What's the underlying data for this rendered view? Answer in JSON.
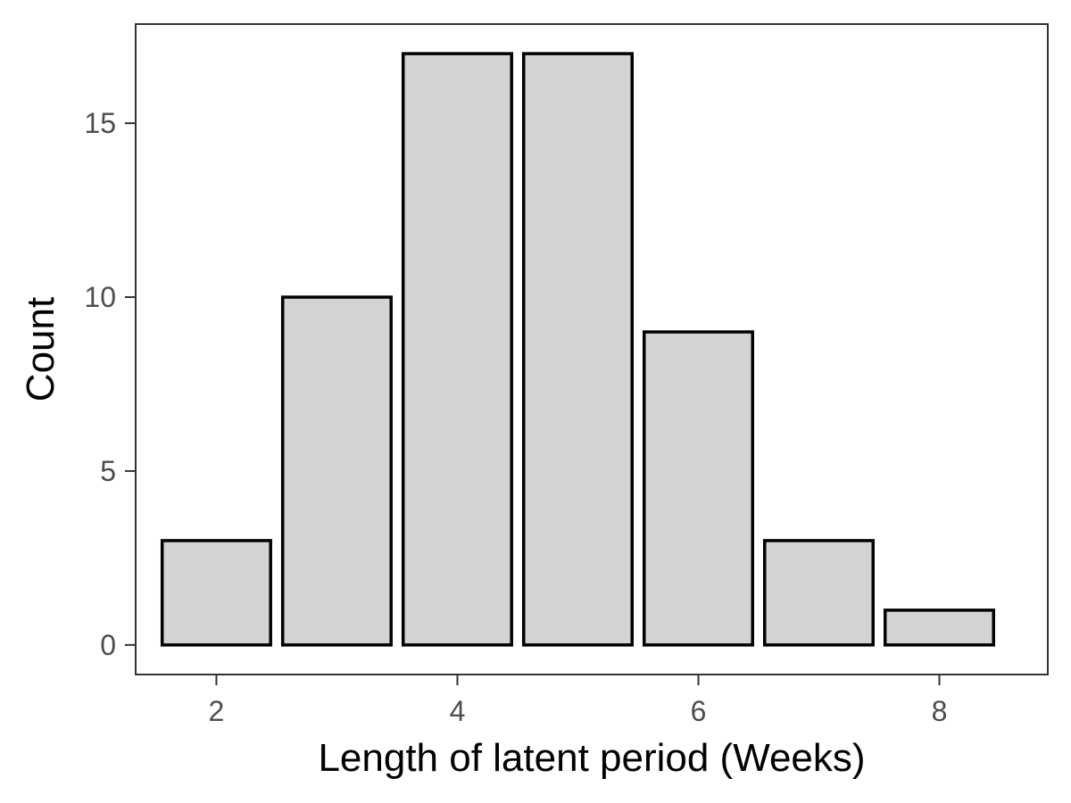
{
  "chart_data": {
    "type": "bar",
    "x": [
      2,
      3,
      4,
      5,
      6,
      7,
      8
    ],
    "values": [
      3,
      10,
      17,
      17,
      9,
      3,
      1
    ],
    "xlabel": "Length of latent period (Weeks)",
    "ylabel": "Count",
    "xticks": [
      2,
      4,
      6,
      8
    ],
    "yticks": [
      0,
      5,
      10,
      15
    ],
    "xlim": [
      1.33,
      8.9
    ],
    "ylim": [
      -0.85,
      17.85
    ],
    "grid": false,
    "bar_fill": "#d3d3d3",
    "bar_stroke": "#000000",
    "panel_border": "#333333"
  }
}
